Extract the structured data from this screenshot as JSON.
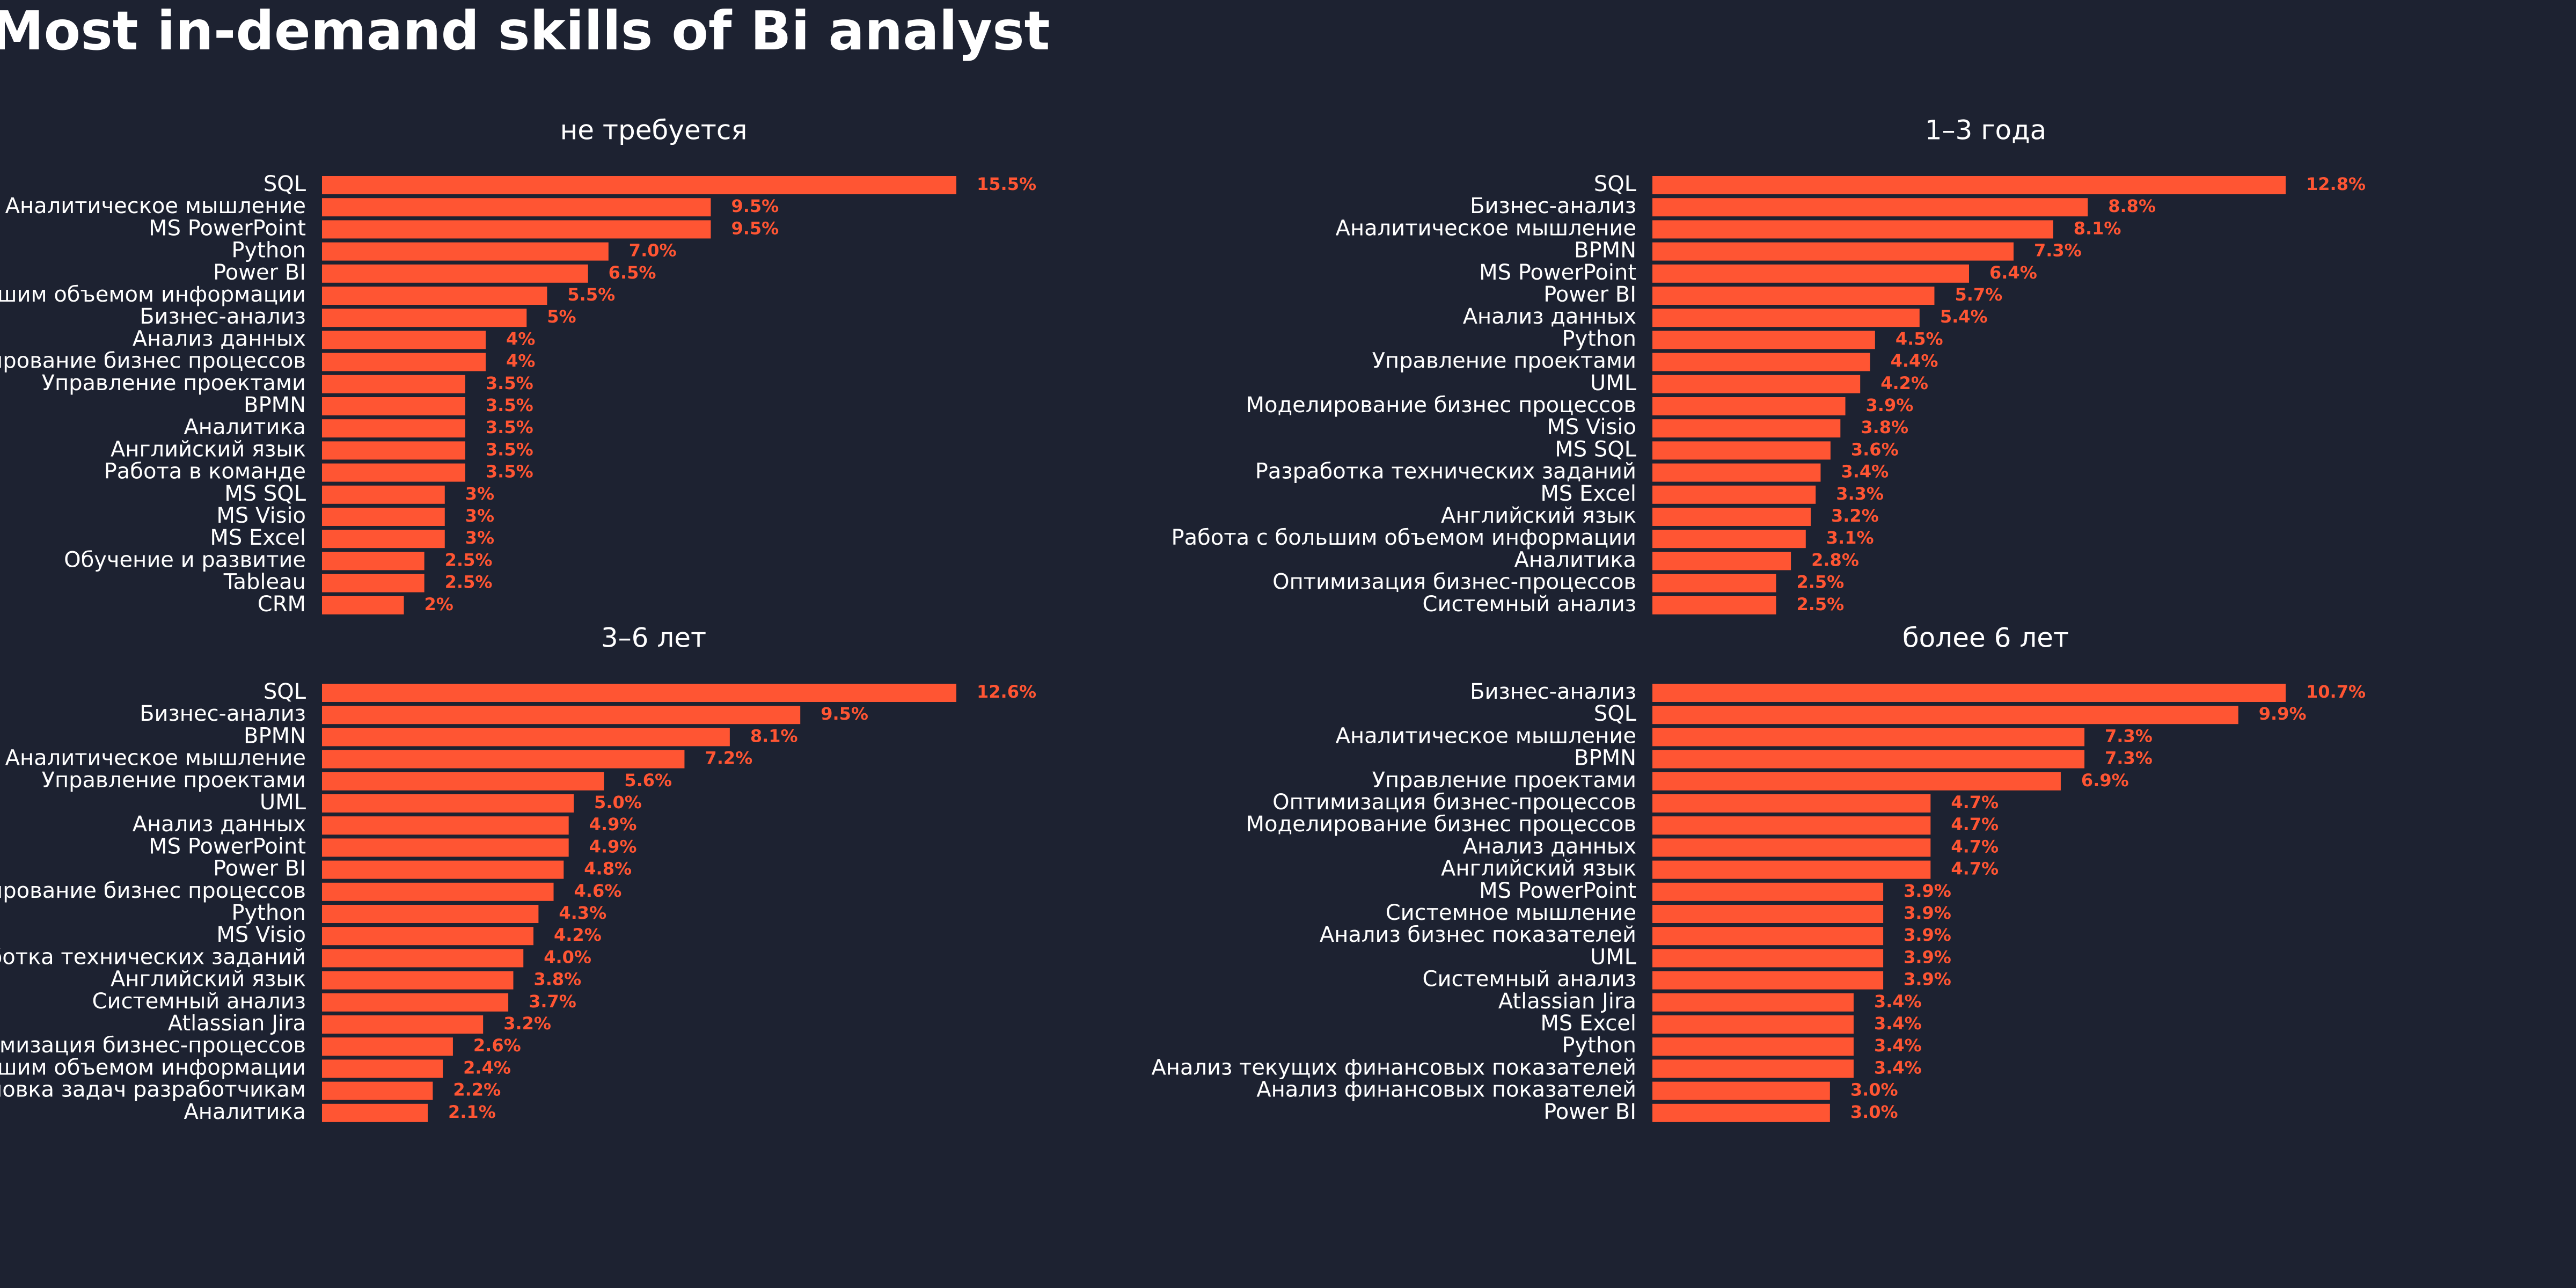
{
  "title": "Most in-demand skills of Bi analyst",
  "colors": {
    "background": "#1d2231",
    "bar": "#ff5533",
    "label": "#ff5533",
    "text": "#ffffff"
  },
  "chart_data": [
    {
      "type": "bar",
      "orientation": "horizontal",
      "title": "не требуется",
      "categories": [
        "SQL",
        "Аналитическое мышление",
        "MS PowerPoint",
        "Python",
        "Power BI",
        "Работа с большим объемом информации",
        "Бизнес-анализ",
        "Анализ данных",
        "Моделирование бизнес процессов",
        "Управление проектами",
        "BPMN",
        "Аналитика",
        "Английский язык",
        "Работа в команде",
        "MS SQL",
        "MS Visio",
        "MS Excel",
        "Обучение и развитие",
        "Tableau",
        "CRM"
      ],
      "values": [
        15.5,
        9.5,
        9.5,
        7.0,
        6.5,
        5.5,
        5,
        4,
        4,
        3.5,
        3.5,
        3.5,
        3.5,
        3.5,
        3,
        3,
        3,
        2.5,
        2.5,
        2
      ],
      "value_labels": [
        "15.5%",
        "9.5%",
        "9.5%",
        "7.0%",
        "6.5%",
        "5.5%",
        "5%",
        "4%",
        "4%",
        "3.5%",
        "3.5%",
        "3.5%",
        "3.5%",
        "3.5%",
        "3%",
        "3%",
        "3%",
        "2.5%",
        "2.5%",
        "2%"
      ],
      "xlim": [
        0,
        15.5
      ]
    },
    {
      "type": "bar",
      "orientation": "horizontal",
      "title": "1–3 года",
      "categories": [
        "SQL",
        "Бизнес-анализ",
        "Аналитическое мышление",
        "BPMN",
        "MS PowerPoint",
        "Power BI",
        "Анализ данных",
        "Python",
        "Управление проектами",
        "UML",
        "Моделирование бизнес процессов",
        "MS Visio",
        "MS SQL",
        "Разработка технических заданий",
        "MS Excel",
        "Английский язык",
        "Работа с большим объемом информации",
        "Аналитика",
        "Оптимизация бизнес-процессов",
        "Системный анализ"
      ],
      "values": [
        12.8,
        8.8,
        8.1,
        7.3,
        6.4,
        5.7,
        5.4,
        4.5,
        4.4,
        4.2,
        3.9,
        3.8,
        3.6,
        3.4,
        3.3,
        3.2,
        3.1,
        2.8,
        2.5,
        2.5
      ],
      "value_labels": [
        "12.8%",
        "8.8%",
        "8.1%",
        "7.3%",
        "6.4%",
        "5.7%",
        "5.4%",
        "4.5%",
        "4.4%",
        "4.2%",
        "3.9%",
        "3.8%",
        "3.6%",
        "3.4%",
        "3.3%",
        "3.2%",
        "3.1%",
        "2.8%",
        "2.5%",
        "2.5%"
      ],
      "xlim": [
        0,
        12.8
      ]
    },
    {
      "type": "bar",
      "orientation": "horizontal",
      "title": "3–6 лет",
      "categories": [
        "SQL",
        "Бизнес-анализ",
        "BPMN",
        "Аналитическое мышление",
        "Управление проектами",
        "UML",
        "Анализ данных",
        "MS PowerPoint",
        "Power BI",
        "Моделирование бизнес процессов",
        "Python",
        "MS Visio",
        "Разработка технических заданий",
        "Английский язык",
        "Системный анализ",
        "Atlassian Jira",
        "Оптимизация бизнес-процессов",
        "Работа с большим объемом информации",
        "Постановка задач разработчикам",
        "Аналитика"
      ],
      "values": [
        12.6,
        9.5,
        8.1,
        7.2,
        5.6,
        5.0,
        4.9,
        4.9,
        4.8,
        4.6,
        4.3,
        4.2,
        4.0,
        3.8,
        3.7,
        3.2,
        2.6,
        2.4,
        2.2,
        2.1
      ],
      "value_labels": [
        "12.6%",
        "9.5%",
        "8.1%",
        "7.2%",
        "5.6%",
        "5.0%",
        "4.9%",
        "4.9%",
        "4.8%",
        "4.6%",
        "4.3%",
        "4.2%",
        "4.0%",
        "3.8%",
        "3.7%",
        "3.2%",
        "2.6%",
        "2.4%",
        "2.2%",
        "2.1%"
      ],
      "xlim": [
        0,
        12.6
      ]
    },
    {
      "type": "bar",
      "orientation": "horizontal",
      "title": "более 6 лет",
      "categories": [
        "Бизнес-анализ",
        "SQL",
        "Аналитическое мышление",
        "BPMN",
        "Управление проектами",
        "Оптимизация бизнес-процессов",
        "Моделирование бизнес процессов",
        "Анализ данных",
        "Английский язык",
        "MS PowerPoint",
        "Системное мышление",
        "Анализ бизнес показателей",
        "UML",
        "Системный анализ",
        "Atlassian Jira",
        "MS Excel",
        "Python",
        "Анализ текущих финансовых показателей",
        "Анализ финансовых показателей",
        "Power BI"
      ],
      "values": [
        10.7,
        9.9,
        7.3,
        7.3,
        6.9,
        4.7,
        4.7,
        4.7,
        4.7,
        3.9,
        3.9,
        3.9,
        3.9,
        3.9,
        3.4,
        3.4,
        3.4,
        3.4,
        3.0,
        3.0
      ],
      "value_labels": [
        "10.7%",
        "9.9%",
        "7.3%",
        "7.3%",
        "6.9%",
        "4.7%",
        "4.7%",
        "4.7%",
        "4.7%",
        "3.9%",
        "3.9%",
        "3.9%",
        "3.9%",
        "3.9%",
        "3.4%",
        "3.4%",
        "3.4%",
        "3.4%",
        "3.0%",
        "3.0%"
      ],
      "xlim": [
        0,
        10.7
      ]
    }
  ]
}
